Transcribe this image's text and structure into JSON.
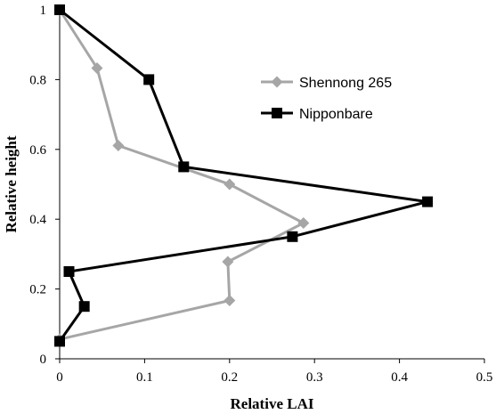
{
  "chart_data": {
    "type": "line",
    "title": "",
    "xlabel": "Relative LAI",
    "ylabel": "Relative height",
    "xlim": [
      0,
      0.5
    ],
    "ylim": [
      0,
      1
    ],
    "xticks": [
      "0",
      "0.1",
      "0.2",
      "0.3",
      "0.4",
      "0.5"
    ],
    "yticks": [
      "0",
      "0.2",
      "0.4",
      "0.6",
      "0.8",
      "1"
    ],
    "grid": false,
    "legend_position": "right",
    "series": [
      {
        "name": "Shennong 265",
        "marker": "diamond",
        "color": "#a6a6a6",
        "points": [
          {
            "x": 0.0,
            "y": 1.0
          },
          {
            "x": 0.044,
            "y": 0.833
          },
          {
            "x": 0.069,
            "y": 0.611
          },
          {
            "x": 0.2,
            "y": 0.5
          },
          {
            "x": 0.287,
            "y": 0.389
          },
          {
            "x": 0.198,
            "y": 0.278
          },
          {
            "x": 0.2,
            "y": 0.167
          },
          {
            "x": 0.0,
            "y": 0.056
          }
        ]
      },
      {
        "name": "Nipponbare",
        "marker": "square",
        "color": "#000000",
        "points": [
          {
            "x": 0.0,
            "y": 1.0
          },
          {
            "x": 0.105,
            "y": 0.8
          },
          {
            "x": 0.146,
            "y": 0.55
          },
          {
            "x": 0.433,
            "y": 0.45
          },
          {
            "x": 0.274,
            "y": 0.35
          },
          {
            "x": 0.011,
            "y": 0.25
          },
          {
            "x": 0.029,
            "y": 0.15
          },
          {
            "x": 0.0,
            "y": 0.05
          }
        ]
      }
    ]
  }
}
